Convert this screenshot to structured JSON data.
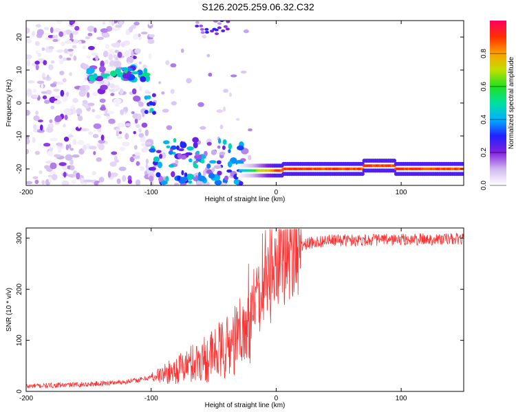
{
  "chart_data": [
    {
      "type": "heatmap",
      "title": "S126.2025.259.06.32.C32",
      "xlabel": "Height of straight line (km)",
      "ylabel": "Frequency (Hz)",
      "xlim": [
        -200,
        150
      ],
      "ylim": [
        -25,
        25
      ],
      "xticks": [
        -200,
        -100,
        0,
        100
      ],
      "yticks": [
        -20,
        -10,
        0,
        10,
        20
      ],
      "colorbar": {
        "label": "Normalized spectral amplitude",
        "range": [
          0,
          1
        ],
        "ticks": [
          0.0,
          0.2,
          0.4,
          0.6,
          0.8
        ],
        "colors": [
          "#ffffff",
          "#d0b8f0",
          "#8020e0",
          "#2020ff",
          "#00b0ff",
          "#00e0a0",
          "#20e020",
          "#c0e000",
          "#ffa000",
          "#ff3000",
          "#ff0060"
        ]
      },
      "features": [
        {
          "name": "tone track",
          "x_range": [
            -30,
            150
          ],
          "frequency": -20,
          "peak_amplitude": 0.9
        },
        {
          "name": "upper cluster",
          "x_range": [
            -150,
            -100
          ],
          "frequency": 9,
          "peak_amplitude": 0.4
        },
        {
          "name": "noise field",
          "x_range": [
            -200,
            -100
          ],
          "frequency_range": [
            -25,
            25
          ],
          "peak_amplitude": 0.15
        }
      ]
    },
    {
      "type": "line",
      "xlabel": "Height of straight line (km)",
      "ylabel": "SNR (10 * v/v)",
      "xlim": [
        -200,
        150
      ],
      "ylim": [
        0,
        320
      ],
      "xticks": [
        -200,
        -100,
        0,
        100
      ],
      "yticks": [
        0,
        100,
        200,
        300
      ],
      "color": "#ff3030",
      "series": [
        {
          "name": "SNR",
          "x": [
            -200,
            -175,
            -150,
            -125,
            -110,
            -100,
            -90,
            -80,
            -70,
            -60,
            -50,
            -40,
            -35,
            -30,
            -25,
            -20,
            -15,
            -10,
            -5,
            0,
            5,
            10,
            15,
            20,
            25,
            30,
            40,
            50,
            75,
            100,
            125,
            150
          ],
          "values": [
            10,
            12,
            14,
            18,
            22,
            28,
            34,
            42,
            52,
            62,
            72,
            84,
            95,
            110,
            130,
            150,
            170,
            195,
            220,
            245,
            260,
            272,
            280,
            285,
            289,
            292,
            295,
            296,
            297,
            297,
            298,
            298
          ]
        }
      ]
    }
  ]
}
